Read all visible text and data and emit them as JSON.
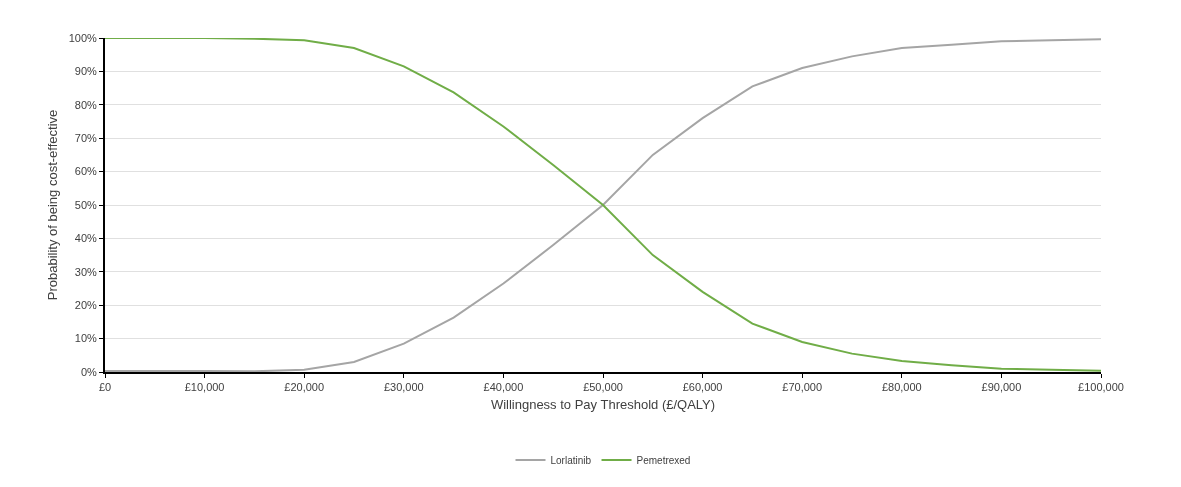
{
  "chart_data": {
    "type": "line",
    "xlabel": "Willingness to Pay Threshold (£/QALY)",
    "ylabel": "Probability of being cost-effective",
    "x": [
      0,
      5000,
      10000,
      15000,
      20000,
      25000,
      30000,
      35000,
      40000,
      45000,
      50000,
      55000,
      60000,
      65000,
      70000,
      75000,
      80000,
      85000,
      90000,
      95000,
      100000
    ],
    "series": [
      {
        "name": "Lorlatinib",
        "color": "#a5a5a5",
        "values": [
          0.3,
          0.3,
          0.3,
          0.2,
          0.7,
          3,
          8.5,
          16.3,
          26.5,
          38,
          50,
          65,
          76,
          85.5,
          91,
          94.5,
          97,
          98,
          99,
          99.3,
          99.6
        ]
      },
      {
        "name": "Pemetrexed",
        "color": "#70ad47",
        "values": [
          100,
          100,
          100,
          99.8,
          99.3,
          97,
          91.5,
          83.7,
          73.5,
          62,
          50,
          35,
          24,
          14.5,
          9,
          5.5,
          3.3,
          2,
          1,
          0.7,
          0.4
        ]
      }
    ],
    "xlim": [
      0,
      100000
    ],
    "xticks": [
      {
        "value": 0,
        "label": "£0"
      },
      {
        "value": 10000,
        "label": "£10,000"
      },
      {
        "value": 20000,
        "label": "£20,000"
      },
      {
        "value": 30000,
        "label": "£30,000"
      },
      {
        "value": 40000,
        "label": "£40,000"
      },
      {
        "value": 50000,
        "label": "£50,000"
      },
      {
        "value": 60000,
        "label": "£60,000"
      },
      {
        "value": 70000,
        "label": "£70,000"
      },
      {
        "value": 80000,
        "label": "£80,000"
      },
      {
        "value": 90000,
        "label": "£90,000"
      },
      {
        "value": 100000,
        "label": "£100,000"
      }
    ],
    "ylim": [
      0,
      100
    ],
    "yticks": [
      {
        "value": 0,
        "label": "0%"
      },
      {
        "value": 10,
        "label": "10%"
      },
      {
        "value": 20,
        "label": "20%"
      },
      {
        "value": 30,
        "label": "30%"
      },
      {
        "value": 40,
        "label": "40%"
      },
      {
        "value": 50,
        "label": "50%"
      },
      {
        "value": 60,
        "label": "60%"
      },
      {
        "value": 70,
        "label": "70%"
      },
      {
        "value": 80,
        "label": "80%"
      },
      {
        "value": 90,
        "label": "90%"
      },
      {
        "value": 100,
        "label": "100%"
      }
    ],
    "grid": "y",
    "legend": "bottom",
    "marker": "none",
    "line_style": "solid"
  }
}
